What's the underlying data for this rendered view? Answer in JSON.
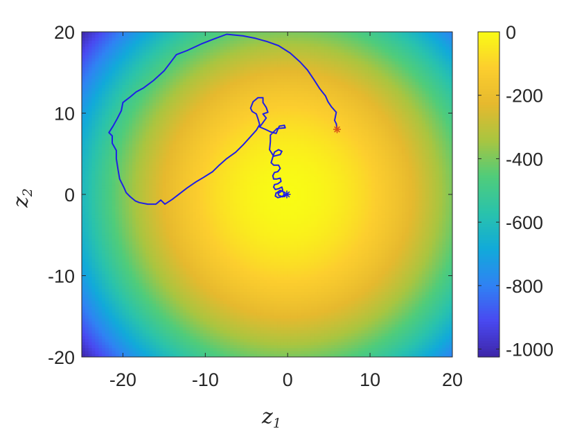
{
  "chart_data": {
    "type": "heatmap",
    "title": "",
    "xlabel": {
      "symbol": "z",
      "subscript": "1"
    },
    "ylabel": {
      "symbol": "z",
      "subscript": "2"
    },
    "xlim": [
      -25,
      20
    ],
    "ylim": [
      -20,
      20
    ],
    "x_ticks": [
      -20,
      -10,
      0,
      10,
      20
    ],
    "y_ticks": [
      -20,
      -10,
      0,
      10,
      20
    ],
    "x_tick_labels": [
      "-20",
      "-10",
      "0",
      "10",
      "20"
    ],
    "y_tick_labels": [
      "-20",
      "-10",
      "0",
      "10",
      "20"
    ],
    "grid": false,
    "surface": {
      "description": "concentric field centered at origin, value = -(z1^2 + z2^2)",
      "center": [
        0,
        0
      ],
      "scale": -1.0
    },
    "colorbar": {
      "range": [
        -1025,
        0
      ],
      "ticks": [
        0,
        -200,
        -400,
        -600,
        -800,
        -1000
      ],
      "tick_labels": [
        "0",
        "-200",
        "-400",
        "-600",
        "-800",
        "-1000"
      ],
      "colormap": "parula",
      "colors": [
        "#3e26a8",
        "#4949f1",
        "#2f83f3",
        "#11aad9",
        "#2ac3ab",
        "#50cc7a",
        "#a9c540",
        "#e6b92e",
        "#fcce2e",
        "#f9fb15"
      ]
    },
    "trajectory": {
      "color": "#1e1ee6",
      "points": [
        [
          6.0,
          8.0
        ],
        [
          5.9,
          8.7
        ],
        [
          5.7,
          9.1
        ],
        [
          5.9,
          10.1
        ],
        [
          5.3,
          10.8
        ],
        [
          4.9,
          11.4
        ],
        [
          4.6,
          12.1
        ],
        [
          3.9,
          13.0
        ],
        [
          3.2,
          14.1
        ],
        [
          2.4,
          15.3
        ],
        [
          1.5,
          16.3
        ],
        [
          0.3,
          17.4
        ],
        [
          -1.1,
          18.3
        ],
        [
          -2.5,
          18.8
        ],
        [
          -3.9,
          19.2
        ],
        [
          -5.4,
          19.5
        ],
        [
          -7.4,
          19.7
        ],
        [
          -9.0,
          19.1
        ],
        [
          -10.5,
          18.5
        ],
        [
          -12.2,
          17.7
        ],
        [
          -13.5,
          17.2
        ],
        [
          -14.1,
          16.4
        ],
        [
          -15.0,
          15.2
        ],
        [
          -16.3,
          14.0
        ],
        [
          -17.5,
          13.1
        ],
        [
          -18.4,
          12.6
        ],
        [
          -19.1,
          12.0
        ],
        [
          -20.0,
          11.3
        ],
        [
          -20.2,
          10.3
        ],
        [
          -20.7,
          9.3
        ],
        [
          -21.2,
          8.4
        ],
        [
          -21.7,
          7.6
        ],
        [
          -21.3,
          7.2
        ],
        [
          -21.3,
          6.3
        ],
        [
          -20.8,
          5.4
        ],
        [
          -20.8,
          4.4
        ],
        [
          -20.6,
          3.1
        ],
        [
          -20.4,
          1.9
        ],
        [
          -19.9,
          0.9
        ],
        [
          -19.6,
          0.2
        ],
        [
          -19.1,
          -0.3
        ],
        [
          -18.5,
          -0.8
        ],
        [
          -18.0,
          -1.0
        ],
        [
          -17.0,
          -1.2
        ],
        [
          -16.0,
          -1.2
        ],
        [
          -15.4,
          -0.7
        ],
        [
          -14.9,
          -1.2
        ],
        [
          -14.0,
          -0.6
        ],
        [
          -13.1,
          0.1
        ],
        [
          -12.2,
          0.8
        ],
        [
          -11.2,
          1.5
        ],
        [
          -10.2,
          2.1
        ],
        [
          -9.1,
          2.8
        ],
        [
          -8.3,
          3.6
        ],
        [
          -7.4,
          4.4
        ],
        [
          -6.3,
          5.2
        ],
        [
          -5.4,
          6.1
        ],
        [
          -4.6,
          7.0
        ],
        [
          -3.8,
          7.9
        ],
        [
          -3.4,
          8.6
        ],
        [
          -3.6,
          9.3
        ],
        [
          -3.8,
          9.9
        ],
        [
          -4.3,
          10.2
        ],
        [
          -4.5,
          10.6
        ],
        [
          -4.2,
          11.4
        ],
        [
          -3.6,
          11.9
        ],
        [
          -3.0,
          11.9
        ],
        [
          -3.0,
          11.3
        ],
        [
          -2.6,
          10.7
        ],
        [
          -2.4,
          10.1
        ],
        [
          -3.0,
          9.9
        ],
        [
          -2.6,
          9.4
        ],
        [
          -3.1,
          8.7
        ],
        [
          -3.4,
          8.3
        ],
        [
          -2.7,
          8.0
        ],
        [
          -2.1,
          7.7
        ],
        [
          -1.4,
          7.5
        ],
        [
          -1.2,
          8.0
        ],
        [
          -1.0,
          8.4
        ],
        [
          -0.4,
          8.5
        ],
        [
          -0.3,
          8.2
        ],
        [
          -1.3,
          8.1
        ],
        [
          -2.1,
          7.3
        ],
        [
          -2.1,
          6.5
        ],
        [
          -2.2,
          5.5
        ],
        [
          -1.7,
          4.7
        ],
        [
          -0.9,
          4.9
        ],
        [
          -0.7,
          5.3
        ],
        [
          -1.1,
          5.5
        ],
        [
          -1.6,
          5.2
        ],
        [
          -1.8,
          4.6
        ],
        [
          -2.0,
          3.9
        ],
        [
          -1.7,
          3.6
        ],
        [
          -1.1,
          3.6
        ],
        [
          -0.9,
          3.2
        ],
        [
          -1.2,
          2.8
        ],
        [
          -1.6,
          2.7
        ],
        [
          -1.8,
          2.3
        ],
        [
          -1.7,
          1.9
        ],
        [
          -1.3,
          1.9
        ],
        [
          -0.9,
          2.0
        ],
        [
          -0.8,
          1.6
        ],
        [
          -1.2,
          1.3
        ],
        [
          -1.6,
          1.2
        ],
        [
          -1.7,
          0.9
        ],
        [
          -1.5,
          0.6
        ],
        [
          -1.1,
          0.7
        ],
        [
          -0.7,
          0.9
        ],
        [
          -0.6,
          0.5
        ],
        [
          -1.0,
          0.2
        ],
        [
          -1.4,
          0.2
        ],
        [
          -1.5,
          -0.2
        ],
        [
          -1.2,
          -0.4
        ],
        [
          -0.8,
          -0.3
        ],
        [
          -0.4,
          -0.1
        ],
        [
          -0.5,
          0.3
        ],
        [
          -0.9,
          0.5
        ],
        [
          -1.2,
          0.3
        ],
        [
          -1.1,
          -0.1
        ],
        [
          -0.6,
          -0.3
        ],
        [
          -0.1,
          0.0
        ]
      ],
      "start_marker": {
        "x": 6.0,
        "y": 8.0,
        "symbol": "*",
        "color": "#d95319"
      },
      "end_marker": {
        "x": -0.1,
        "y": 0.0,
        "symbol": "*",
        "color": "#1e1ee6"
      }
    }
  }
}
